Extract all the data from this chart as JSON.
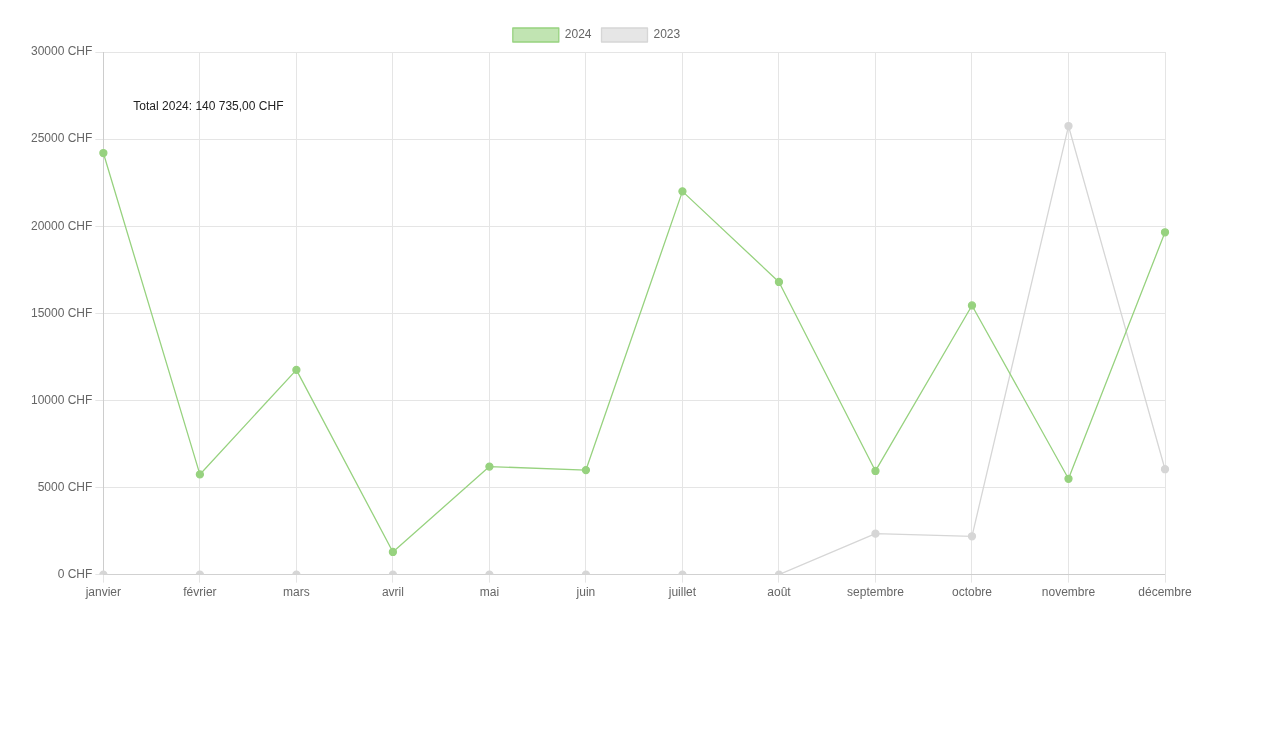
{
  "chart_data": {
    "type": "line",
    "categories": [
      "janvier",
      "février",
      "mars",
      "avril",
      "mai",
      "juin",
      "juillet",
      "août",
      "septembre",
      "octobre",
      "novembre",
      "décembre"
    ],
    "series": [
      {
        "name": "2024",
        "color": "#97d27f",
        "values": [
          24200,
          5750,
          11750,
          1300,
          6200,
          6000,
          22000,
          16800,
          5950,
          15450,
          5500,
          19650
        ]
      },
      {
        "name": "2023",
        "color": "#d6d6d6",
        "values": [
          0,
          0,
          0,
          0,
          0,
          0,
          0,
          0,
          2350,
          2200,
          25750,
          6050
        ]
      }
    ],
    "ylim": [
      0,
      30000
    ],
    "yticks": [
      {
        "value": 0,
        "label": "0 CHF"
      },
      {
        "value": 5000,
        "label": "5000 CHF"
      },
      {
        "value": 10000,
        "label": "10000 CHF"
      },
      {
        "value": 15000,
        "label": "15000 CHF"
      },
      {
        "value": 20000,
        "label": "20000 CHF"
      },
      {
        "value": 25000,
        "label": "25000 CHF"
      },
      {
        "value": 30000,
        "label": "30000 CHF"
      }
    ],
    "annotations": [
      "Total 2024: 140 735,00 CHF"
    ],
    "grid": true,
    "legend": "top",
    "marker": "circle",
    "line_style": "solid"
  }
}
